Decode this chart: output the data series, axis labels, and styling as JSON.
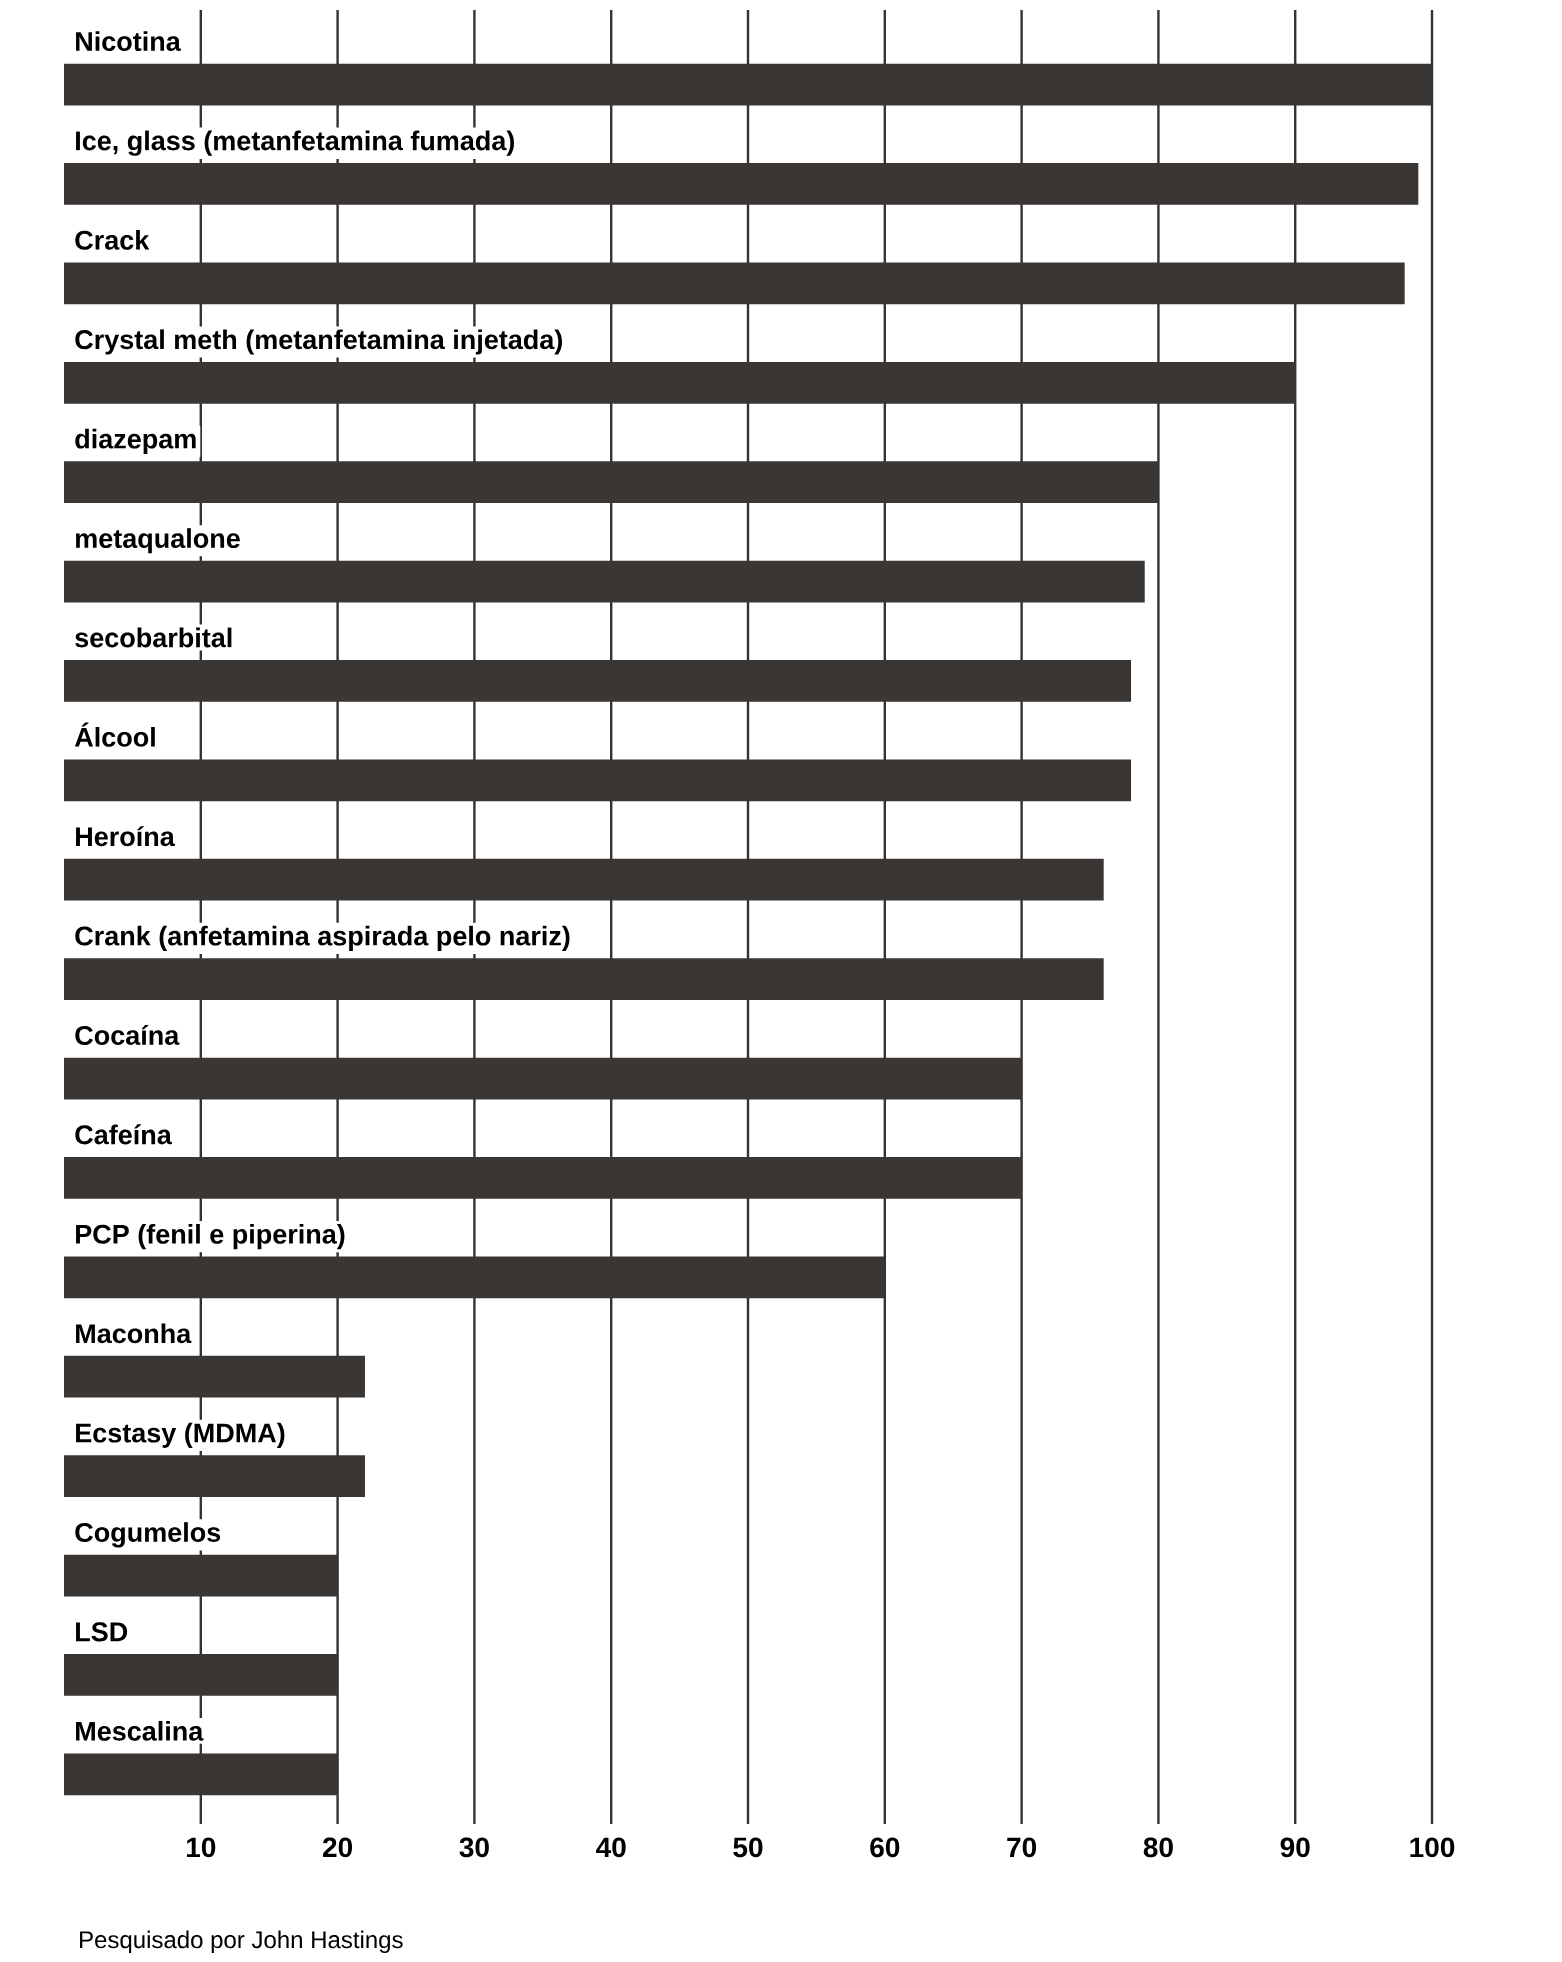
{
  "chart_data": {
    "type": "bar",
    "orientation": "horizontal",
    "categories": [
      "Nicotina",
      "Ice, glass (metanfetamina fumada)",
      "Crack",
      "Crystal meth (metanfetamina injetada)",
      "diazepam",
      "metaqualone",
      "secobarbital",
      "Álcool",
      "Heroína",
      "Crank (anfetamina aspirada pelo nariz)",
      "Cocaína",
      "Cafeína",
      "PCP (fenil e piperina)",
      "Maconha",
      "Ecstasy (MDMA)",
      "Cogumelos",
      "LSD",
      "Mescalina"
    ],
    "values": [
      100,
      99,
      98,
      90,
      80,
      79,
      78,
      78,
      76,
      76,
      70,
      70,
      60,
      22,
      22,
      20,
      20,
      20
    ],
    "color": "#3a3634",
    "xlim": [
      0,
      100
    ],
    "xticks": [
      10,
      20,
      30,
      40,
      50,
      60,
      70,
      80,
      90,
      100
    ],
    "grid": "x",
    "annotations": [
      "Pesquisado por John Hastings"
    ]
  }
}
